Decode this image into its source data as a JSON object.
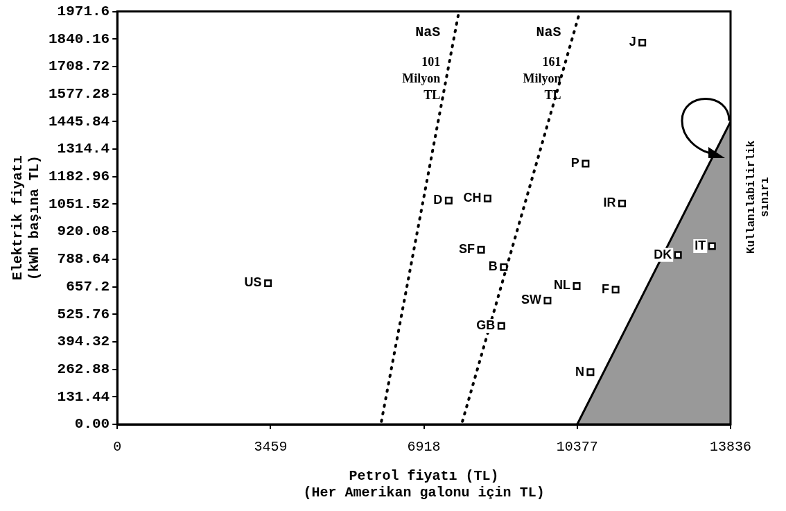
{
  "chart_data": {
    "type": "scatter",
    "xlabel": "Petrol fiyatı (TL)\n(Her Amerikan galonu için TL)",
    "ylabel": "Elektrik fiyatı\n(kWh başına TL)",
    "xlim": [
      0,
      13836
    ],
    "xticks": [
      0,
      3459,
      6918,
      10377,
      13836
    ],
    "ylim": [
      0,
      1971.6
    ],
    "yticks": [
      {
        "value": 0,
        "label": "0.00"
      },
      131.44,
      262.88,
      394.32,
      525.76,
      657.2,
      788.64,
      920.08,
      1051.52,
      1182.96,
      1314.4,
      1445.84,
      1577.28,
      1708.72,
      1840.16,
      1971.6
    ],
    "grid": false,
    "legend": "right",
    "series": [
      {
        "marker": "square",
        "color": "#000000",
        "x": [
          3400,
          7477,
          8354,
          8208,
          8720,
          10365,
          9707,
          8665,
          10676,
          11242,
          11389,
          10566,
          11845,
          12650,
          13418
        ],
        "values": [
          674,
          1069,
          1079,
          834,
          751,
          661,
          591,
          470,
          249,
          643,
          1055,
          1245,
          1823,
          809,
          851
        ]
      },
      {
        "type": "line",
        "name": "NaS 101 Milyon TL",
        "marker": "none",
        "color": "#000000",
        "line_style": "dotted",
        "x": [
          5959,
          7696
        ],
        "values": [
          14,
          1958
        ]
      },
      {
        "type": "line",
        "name": "NaS 161 Milyon TL",
        "marker": "none",
        "color": "#000000",
        "line_style": "dotted",
        "x": [
          7787,
          10420
        ],
        "values": [
          14,
          1958
        ]
      },
      {
        "type": "area",
        "name": "Kullanılabilirlik sınırı",
        "color": "#000000",
        "x": [
          10377,
          13836
        ],
        "values": [
          0,
          1446
        ]
      }
    ],
    "annotations": [
      {
        "text": "US",
        "x": 3400,
        "y": 674
      },
      {
        "text": "D",
        "x": 7477,
        "y": 1069
      },
      {
        "text": "CH",
        "x": 8354,
        "y": 1079
      },
      {
        "text": "SF",
        "x": 8208,
        "y": 834
      },
      {
        "text": "B",
        "x": 8720,
        "y": 751
      },
      {
        "text": "NL",
        "x": 10365,
        "y": 661
      },
      {
        "text": "SW",
        "x": 9707,
        "y": 591
      },
      {
        "text": "GB",
        "x": 8665,
        "y": 470
      },
      {
        "text": "N",
        "x": 10676,
        "y": 249
      },
      {
        "text": "F",
        "x": 11242,
        "y": 643
      },
      {
        "text": "IR",
        "x": 11389,
        "y": 1055
      },
      {
        "text": "P",
        "x": 10566,
        "y": 1245
      },
      {
        "text": "J",
        "x": 11845,
        "y": 1823
      },
      {
        "text": "DK",
        "x": 12650,
        "y": 809
      },
      {
        "text": "IT",
        "x": 13418,
        "y": 851
      }
    ]
  }
}
